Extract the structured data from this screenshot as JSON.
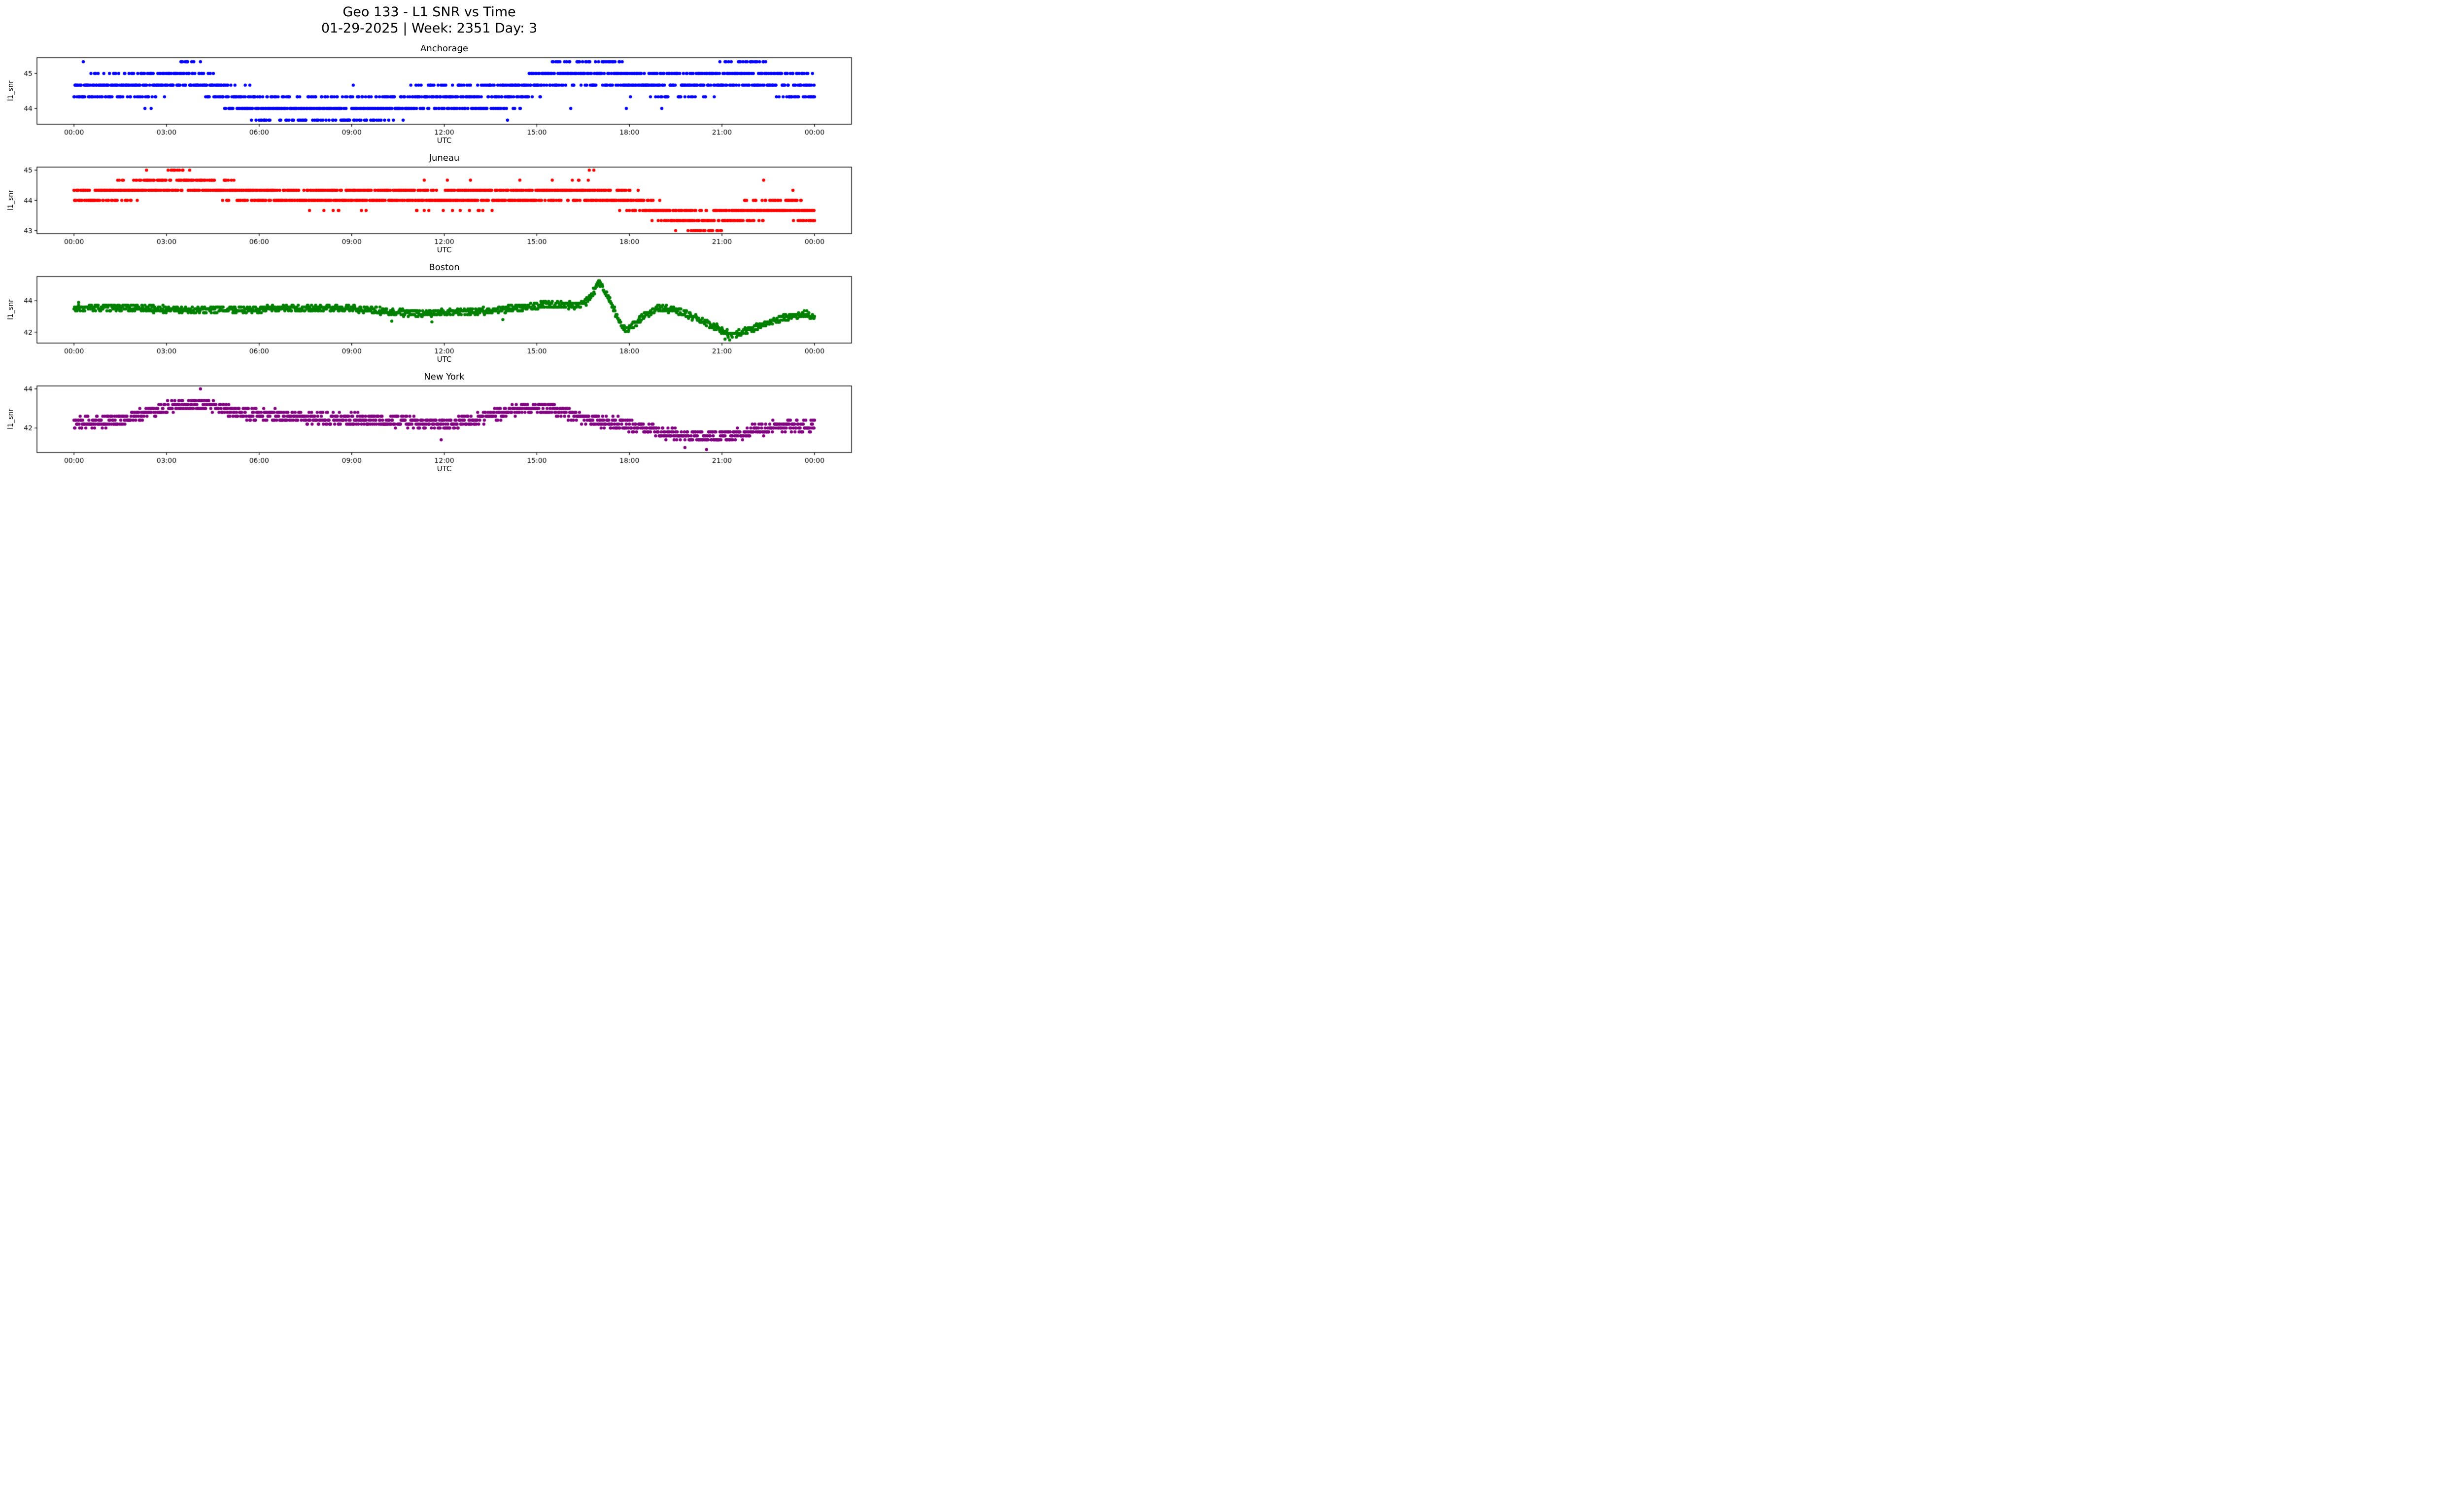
{
  "chart_data": {
    "type": "scatter",
    "title": "Geo 133 - L1 SNR vs Time",
    "subtitle": "01-29-2025 | Week: 2351 Day: 3",
    "xlabel": "UTC",
    "ylabel": "l1_snr",
    "xlim_hours": [
      -1.2,
      25.2
    ],
    "x_ticks": [
      {
        "hour": 0,
        "label": "00:00"
      },
      {
        "hour": 3,
        "label": "03:00"
      },
      {
        "hour": 6,
        "label": "06:00"
      },
      {
        "hour": 9,
        "label": "09:00"
      },
      {
        "hour": 12,
        "label": "12:00"
      },
      {
        "hour": 15,
        "label": "15:00"
      },
      {
        "hour": 18,
        "label": "18:00"
      },
      {
        "hour": 21,
        "label": "21:00"
      },
      {
        "hour": 24,
        "label": "00:00"
      }
    ],
    "sample_minutes": 1,
    "subplots": [
      {
        "station": "Anchorage",
        "color": "#0000ff",
        "seed": 11,
        "ylim": [
          43.55,
          45.45
        ],
        "yticks": [
          44,
          45
        ],
        "quant": 0.3333,
        "quant_base": 44,
        "spread": 0.35,
        "trend": [
          [
            0,
            44.45
          ],
          [
            0.5,
            44.6
          ],
          [
            1.5,
            44.6
          ],
          [
            2.2,
            44.7
          ],
          [
            3.0,
            44.85
          ],
          [
            3.6,
            44.95
          ],
          [
            4.2,
            44.8
          ],
          [
            4.7,
            44.45
          ],
          [
            5.2,
            44.2
          ],
          [
            6.0,
            44.1
          ],
          [
            7.0,
            44.05
          ],
          [
            8.5,
            44.0
          ],
          [
            10.0,
            44.05
          ],
          [
            10.8,
            44.15
          ],
          [
            11.5,
            44.3
          ],
          [
            12.5,
            44.3
          ],
          [
            13.5,
            44.35
          ],
          [
            14.5,
            44.45
          ],
          [
            15.0,
            44.7
          ],
          [
            15.5,
            44.95
          ],
          [
            16.5,
            45.05
          ],
          [
            17.3,
            45.0
          ],
          [
            18.0,
            44.85
          ],
          [
            18.8,
            44.7
          ],
          [
            19.6,
            44.7
          ],
          [
            20.4,
            44.75
          ],
          [
            21.2,
            44.95
          ],
          [
            21.9,
            45.05
          ],
          [
            22.5,
            44.9
          ],
          [
            23.0,
            44.7
          ],
          [
            23.5,
            44.6
          ],
          [
            24,
            44.6
          ]
        ],
        "outliers": [
          [
            0.3,
            45.333
          ],
          [
            2.3,
            44.0
          ],
          [
            2.5,
            44.0
          ],
          [
            5.55,
            44.667
          ],
          [
            5.7,
            44.667
          ],
          [
            9.05,
            44.667
          ],
          [
            12.0,
            44.667
          ],
          [
            13.2,
            44.667
          ],
          [
            14.05,
            43.667
          ],
          [
            16.1,
            44.0
          ],
          [
            17.9,
            44.0
          ],
          [
            19.05,
            44.0
          ]
        ]
      },
      {
        "station": "Juneau",
        "color": "#ff0000",
        "seed": 22,
        "ylim": [
          42.9,
          45.1
        ],
        "yticks": [
          43,
          44,
          45
        ],
        "quant": 0.3333,
        "quant_base": 44,
        "spread": 0.3,
        "trend": [
          [
            0,
            44.2
          ],
          [
            0.8,
            44.25
          ],
          [
            1.8,
            44.3
          ],
          [
            2.6,
            44.5
          ],
          [
            3.1,
            44.65
          ],
          [
            3.8,
            44.6
          ],
          [
            4.4,
            44.45
          ],
          [
            5.0,
            44.3
          ],
          [
            6.0,
            44.15
          ],
          [
            8.0,
            44.1
          ],
          [
            10.0,
            44.12
          ],
          [
            12.0,
            44.08
          ],
          [
            14.0,
            44.1
          ],
          [
            15.5,
            44.2
          ],
          [
            16.6,
            44.3
          ],
          [
            17.2,
            44.2
          ],
          [
            17.8,
            44.05
          ],
          [
            18.4,
            43.9
          ],
          [
            19.0,
            43.6
          ],
          [
            19.6,
            43.4
          ],
          [
            20.5,
            43.3
          ],
          [
            21.2,
            43.45
          ],
          [
            21.9,
            43.65
          ],
          [
            22.6,
            43.8
          ],
          [
            23.2,
            43.8
          ],
          [
            23.7,
            43.6
          ],
          [
            24,
            43.55
          ]
        ],
        "outliers": [
          [
            2.35,
            45.0
          ],
          [
            8.4,
            43.667
          ],
          [
            11.35,
            44.667
          ],
          [
            12.1,
            44.667
          ],
          [
            12.85,
            44.667
          ],
          [
            14.45,
            44.667
          ],
          [
            15.5,
            44.667
          ],
          [
            16.7,
            45.0
          ],
          [
            16.85,
            45.0
          ],
          [
            19.5,
            43.0
          ],
          [
            20.0,
            43.0
          ],
          [
            20.4,
            43.0
          ],
          [
            22.35,
            44.667
          ],
          [
            23.3,
            44.333
          ]
        ]
      },
      {
        "station": "Boston",
        "color": "#008000",
        "seed": 33,
        "ylim": [
          41.3,
          45.55
        ],
        "yticks": [
          42,
          44
        ],
        "quant": 0.12,
        "quant_base": 43,
        "spread": 0.2,
        "trend": [
          [
            0,
            43.5
          ],
          [
            1.0,
            43.55
          ],
          [
            2.0,
            43.55
          ],
          [
            3.0,
            43.45
          ],
          [
            4.0,
            43.4
          ],
          [
            5.0,
            43.45
          ],
          [
            6.0,
            43.45
          ],
          [
            7.0,
            43.5
          ],
          [
            8.0,
            43.5
          ],
          [
            9.0,
            43.5
          ],
          [
            9.8,
            43.4
          ],
          [
            10.5,
            43.25
          ],
          [
            11.2,
            43.2
          ],
          [
            12.0,
            43.25
          ],
          [
            12.8,
            43.3
          ],
          [
            13.6,
            43.4
          ],
          [
            14.4,
            43.55
          ],
          [
            15.2,
            43.75
          ],
          [
            15.8,
            43.75
          ],
          [
            16.3,
            43.7
          ],
          [
            16.6,
            43.95
          ],
          [
            16.85,
            44.6
          ],
          [
            17.0,
            45.2
          ],
          [
            17.15,
            44.8
          ],
          [
            17.35,
            44.1
          ],
          [
            17.55,
            43.2
          ],
          [
            17.75,
            42.4
          ],
          [
            17.95,
            42.1
          ],
          [
            18.15,
            42.45
          ],
          [
            18.5,
            43.1
          ],
          [
            18.9,
            43.5
          ],
          [
            19.4,
            43.45
          ],
          [
            19.9,
            43.1
          ],
          [
            20.4,
            42.7
          ],
          [
            20.9,
            42.2
          ],
          [
            21.3,
            41.85
          ],
          [
            21.7,
            42.0
          ],
          [
            22.2,
            42.4
          ],
          [
            22.7,
            42.75
          ],
          [
            23.2,
            43.0
          ],
          [
            23.7,
            43.15
          ],
          [
            24,
            43.0
          ]
        ],
        "outliers": [
          [
            0.15,
            43.9
          ],
          [
            10.3,
            42.7
          ],
          [
            11.6,
            42.65
          ],
          [
            13.9,
            42.8
          ],
          [
            21.1,
            41.55
          ],
          [
            21.25,
            41.5
          ]
        ]
      },
      {
        "station": "New York",
        "color": "#800080",
        "seed": 44,
        "ylim": [
          40.75,
          44.15
        ],
        "yticks": [
          42,
          44
        ],
        "quant": 0.2,
        "quant_base": 42,
        "spread": 0.28,
        "trend": [
          [
            0,
            42.25
          ],
          [
            0.8,
            42.3
          ],
          [
            1.6,
            42.45
          ],
          [
            2.4,
            42.8
          ],
          [
            3.0,
            43.05
          ],
          [
            3.6,
            43.15
          ],
          [
            4.3,
            43.2
          ],
          [
            4.8,
            43.0
          ],
          [
            5.4,
            42.75
          ],
          [
            6.2,
            42.65
          ],
          [
            7.0,
            42.6
          ],
          [
            8.0,
            42.5
          ],
          [
            9.0,
            42.45
          ],
          [
            10.0,
            42.4
          ],
          [
            11.0,
            42.3
          ],
          [
            11.8,
            42.2
          ],
          [
            12.5,
            42.3
          ],
          [
            13.3,
            42.55
          ],
          [
            14.1,
            42.85
          ],
          [
            14.9,
            43.05
          ],
          [
            15.5,
            43.0
          ],
          [
            16.1,
            42.7
          ],
          [
            16.8,
            42.4
          ],
          [
            17.6,
            42.25
          ],
          [
            18.4,
            42.0
          ],
          [
            19.2,
            41.75
          ],
          [
            20.0,
            41.6
          ],
          [
            20.8,
            41.55
          ],
          [
            21.5,
            41.65
          ],
          [
            22.1,
            41.9
          ],
          [
            22.7,
            42.05
          ],
          [
            23.4,
            42.1
          ],
          [
            24,
            42.1
          ]
        ],
        "outliers": [
          [
            0.25,
            42.0
          ],
          [
            4.1,
            44.0
          ],
          [
            11.9,
            41.4
          ],
          [
            19.8,
            41.0
          ],
          [
            20.5,
            40.9
          ]
        ]
      }
    ]
  }
}
